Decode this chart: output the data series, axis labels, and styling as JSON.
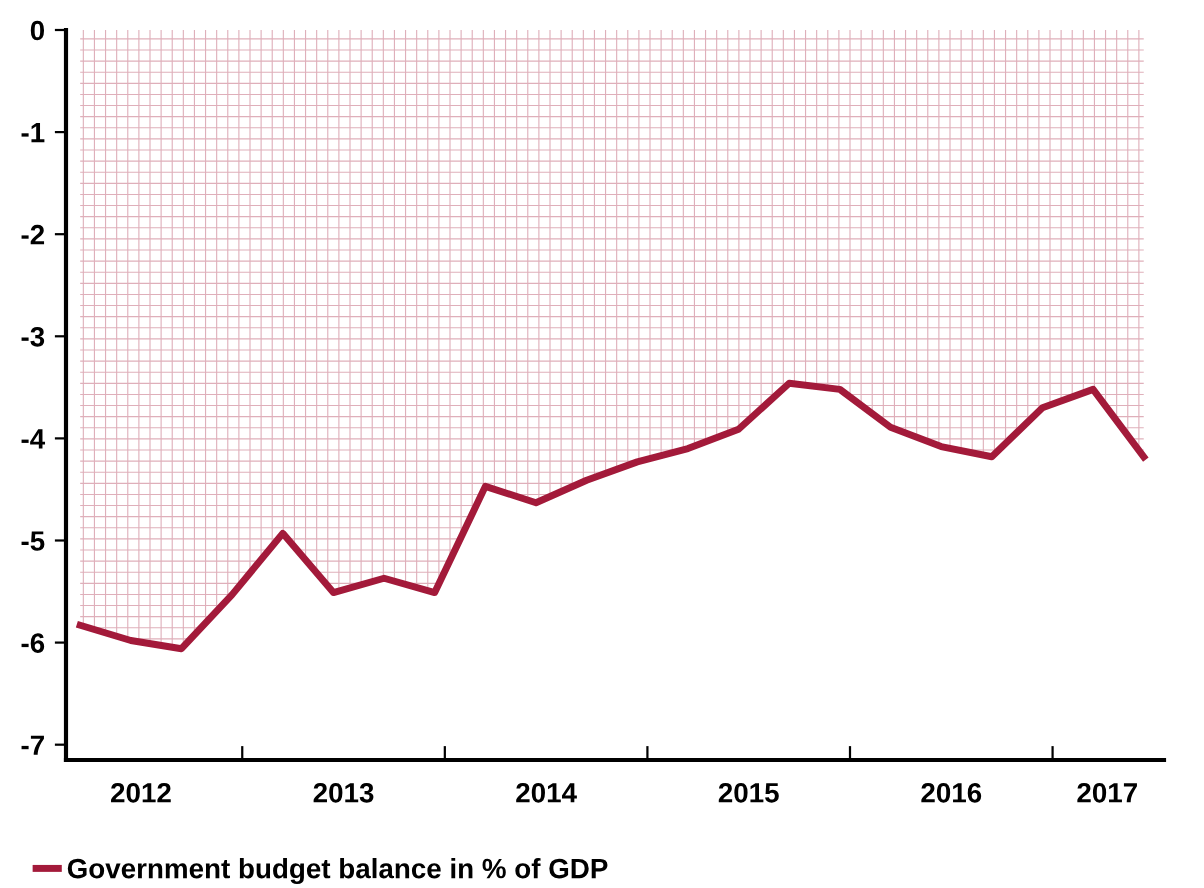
{
  "chart_data": {
    "type": "area",
    "x": [
      2012.2,
      2012.45,
      2012.7,
      2012.95,
      2013.2,
      2013.45,
      2013.7,
      2013.95,
      2014.2,
      2014.45,
      2014.7,
      2014.95,
      2015.2,
      2015.45,
      2015.7,
      2015.95,
      2016.2,
      2016.45,
      2016.7,
      2016.95,
      2017.2,
      2017.45
    ],
    "series": [
      {
        "name": "Government budget balance in % of GDP",
        "color": "#a31a3a",
        "values": [
          -5.83,
          -5.98,
          -6.06,
          -5.53,
          -4.93,
          -5.51,
          -5.37,
          -5.51,
          -4.47,
          -4.63,
          -4.41,
          -4.23,
          -4.1,
          -3.91,
          -3.46,
          -3.52,
          -3.89,
          -4.08,
          -4.18,
          -3.7,
          -3.52,
          -4.18
        ]
      }
    ],
    "xlim": [
      2012.13,
      2017.55
    ],
    "xticks": [
      {
        "value": 2013,
        "label": null
      },
      {
        "value": 2014,
        "label": null
      },
      {
        "value": 2015,
        "label": null
      },
      {
        "value": 2016,
        "label": null
      },
      {
        "value": 2017,
        "label": null
      },
      {
        "value": 2012.5,
        "label": "2012"
      },
      {
        "value": 2013.5,
        "label": "2013"
      },
      {
        "value": 2014.5,
        "label": "2014"
      },
      {
        "value": 2015.5,
        "label": "2015"
      },
      {
        "value": 2016.5,
        "label": "2016"
      },
      {
        "value": 2017.27,
        "label": "2017"
      }
    ],
    "ylim": [
      -7.15,
      0
    ],
    "yticks": [
      -7,
      -6,
      -5,
      -4,
      -3,
      -2,
      -1,
      0
    ],
    "legend": "bottom left",
    "grid": false
  }
}
